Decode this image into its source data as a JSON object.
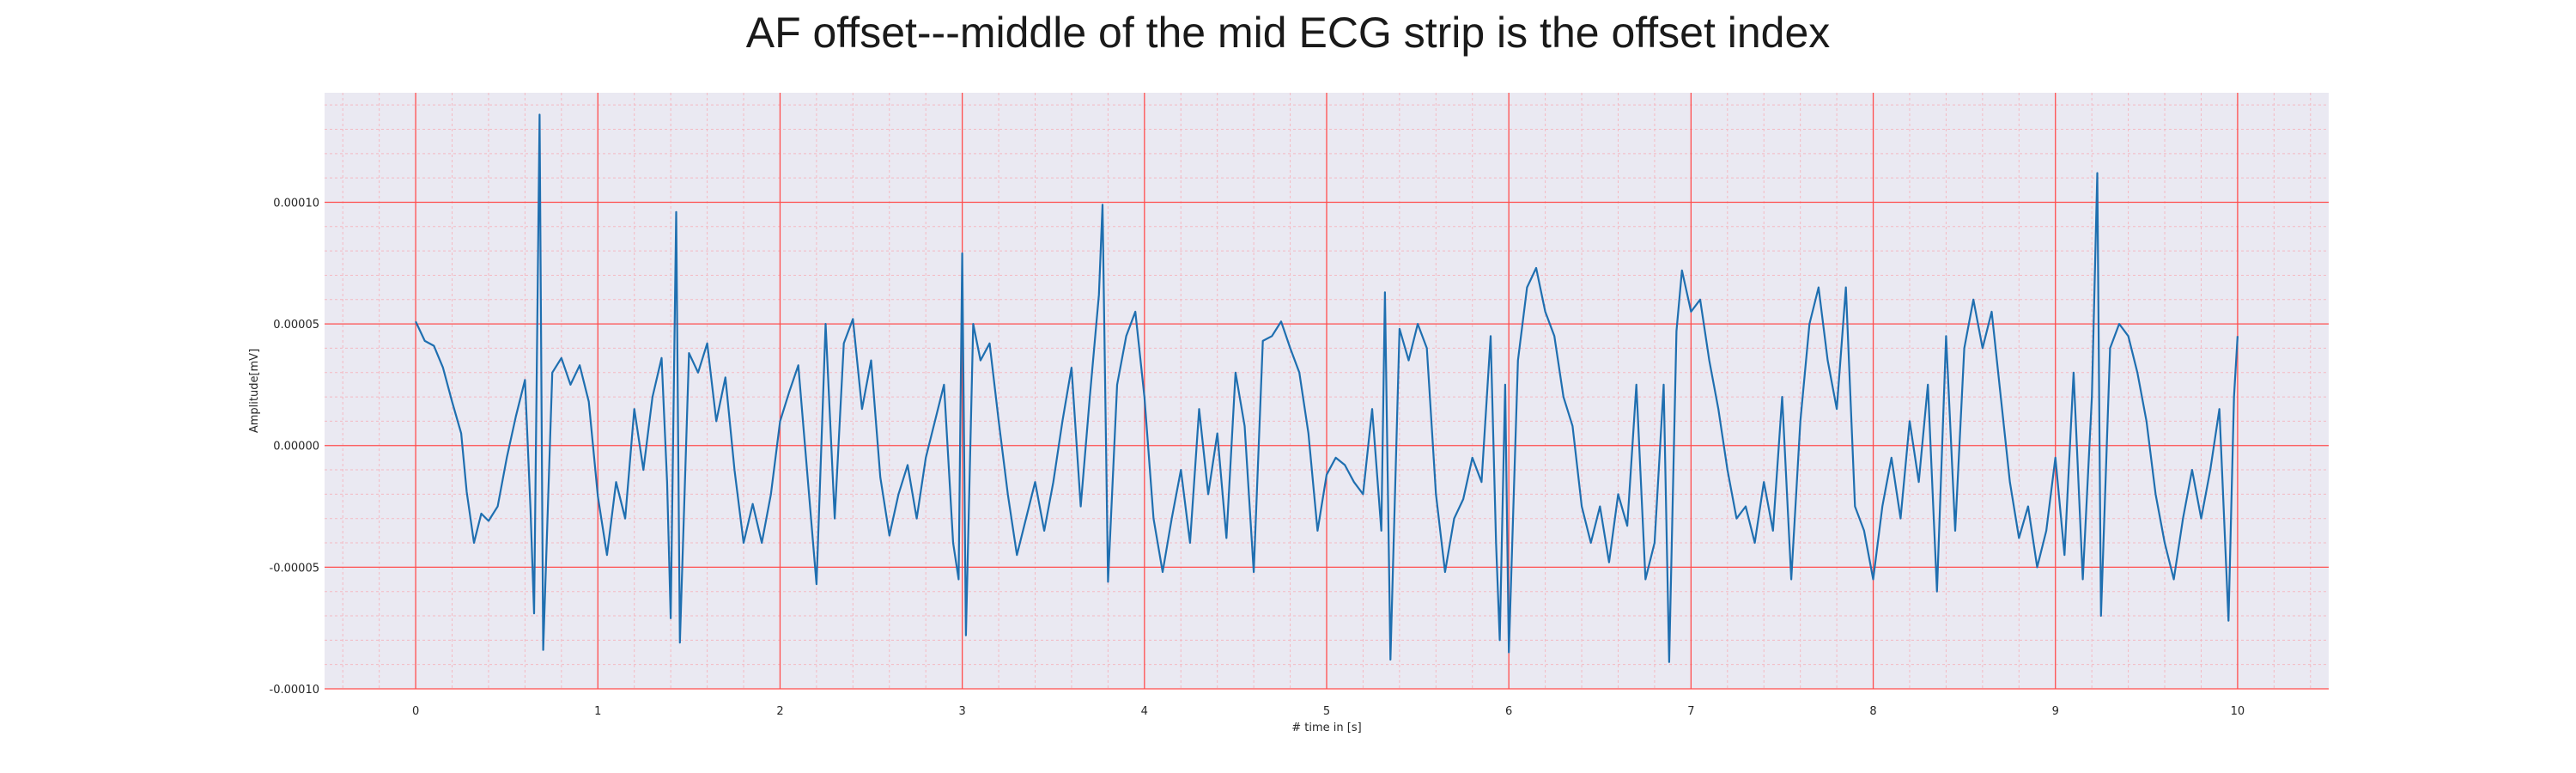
{
  "chart_data": {
    "type": "line",
    "title": "AF offset---middle of the mid ECG strip is the offset index",
    "xlabel": "# time in [s]",
    "ylabel": "Amplitude[mV]",
    "xlim": [
      -0.5,
      10.5
    ],
    "ylim": [
      -0.0001,
      0.000145
    ],
    "x_ticks": [
      0,
      1,
      2,
      3,
      4,
      5,
      6,
      7,
      8,
      9,
      10
    ],
    "x_tick_labels": [
      "0",
      "1",
      "2",
      "3",
      "4",
      "5",
      "6",
      "7",
      "8",
      "9",
      "10"
    ],
    "y_ticks": [
      -0.0001,
      -5e-05,
      0,
      5e-05,
      0.0001
    ],
    "y_tick_labels": [
      "-0.00010",
      "-0.00005",
      "0.00000",
      "0.00005",
      "0.00010"
    ],
    "grid": {
      "major": true,
      "minor": true,
      "major_color": "#ff4d4d",
      "minor_color": "#f4b9c2"
    },
    "background": "#eae9f2",
    "line_color": "#1f6fb0",
    "series": [
      {
        "values": [
          [
            0.0,
            5.1e-05
          ],
          [
            0.05,
            4.3e-05
          ],
          [
            0.1,
            4.1e-05
          ],
          [
            0.15,
            3.2e-05
          ],
          [
            0.2,
            1.8e-05
          ],
          [
            0.25,
            5e-06
          ],
          [
            0.28,
            -1.9e-05
          ],
          [
            0.32,
            -4e-05
          ],
          [
            0.36,
            -2.8e-05
          ],
          [
            0.4,
            -3.1e-05
          ],
          [
            0.45,
            -2.5e-05
          ],
          [
            0.5,
            -5e-06
          ],
          [
            0.55,
            1.2e-05
          ],
          [
            0.6,
            2.7e-05
          ],
          [
            0.63,
            -2.6e-05
          ],
          [
            0.65,
            -6.9e-05
          ],
          [
            0.68,
            0.000136
          ],
          [
            0.7,
            -8.4e-05
          ],
          [
            0.75,
            3e-05
          ],
          [
            0.8,
            3.6e-05
          ],
          [
            0.85,
            2.5e-05
          ],
          [
            0.9,
            3.3e-05
          ],
          [
            0.95,
            1.8e-05
          ],
          [
            1.0,
            -2.1e-05
          ],
          [
            1.05,
            -4.5e-05
          ],
          [
            1.1,
            -1.5e-05
          ],
          [
            1.15,
            -3e-05
          ],
          [
            1.2,
            1.5e-05
          ],
          [
            1.25,
            -1e-05
          ],
          [
            1.3,
            2e-05
          ],
          [
            1.35,
            3.6e-05
          ],
          [
            1.38,
            -1.5e-05
          ],
          [
            1.4,
            -7.1e-05
          ],
          [
            1.43,
            9.6e-05
          ],
          [
            1.45,
            -8.1e-05
          ],
          [
            1.5,
            3.8e-05
          ],
          [
            1.55,
            3e-05
          ],
          [
            1.6,
            4.2e-05
          ],
          [
            1.65,
            1e-05
          ],
          [
            1.7,
            2.8e-05
          ],
          [
            1.75,
            -1e-05
          ],
          [
            1.8,
            -4e-05
          ],
          [
            1.85,
            -2.4e-05
          ],
          [
            1.9,
            -4e-05
          ],
          [
            1.95,
            -2e-05
          ],
          [
            2.0,
            1e-05
          ],
          [
            2.05,
            2.2e-05
          ],
          [
            2.1,
            3.3e-05
          ],
          [
            2.15,
            -1.2e-05
          ],
          [
            2.2,
            -5.7e-05
          ],
          [
            2.25,
            5e-05
          ],
          [
            2.3,
            -3e-05
          ],
          [
            2.35,
            4.2e-05
          ],
          [
            2.4,
            5.2e-05
          ],
          [
            2.45,
            1.5e-05
          ],
          [
            2.5,
            3.5e-05
          ],
          [
            2.55,
            -1.3e-05
          ],
          [
            2.6,
            -3.7e-05
          ],
          [
            2.65,
            -2e-05
          ],
          [
            2.7,
            -8e-06
          ],
          [
            2.75,
            -3e-05
          ],
          [
            2.8,
            -5e-06
          ],
          [
            2.85,
            1e-05
          ],
          [
            2.9,
            2.5e-05
          ],
          [
            2.95,
            -4e-05
          ],
          [
            2.98,
            -5.5e-05
          ],
          [
            3.0,
            7.9e-05
          ],
          [
            3.02,
            -7.8e-05
          ],
          [
            3.06,
            5e-05
          ],
          [
            3.1,
            3.5e-05
          ],
          [
            3.15,
            4.2e-05
          ],
          [
            3.2,
            1e-05
          ],
          [
            3.25,
            -2e-05
          ],
          [
            3.3,
            -4.5e-05
          ],
          [
            3.35,
            -3e-05
          ],
          [
            3.4,
            -1.5e-05
          ],
          [
            3.45,
            -3.5e-05
          ],
          [
            3.5,
            -1.5e-05
          ],
          [
            3.55,
            1e-05
          ],
          [
            3.6,
            3.2e-05
          ],
          [
            3.65,
            -2.5e-05
          ],
          [
            3.7,
            2e-05
          ],
          [
            3.75,
            6.2e-05
          ],
          [
            3.77,
            9.9e-05
          ],
          [
            3.8,
            -5.6e-05
          ],
          [
            3.85,
            2.5e-05
          ],
          [
            3.9,
            4.5e-05
          ],
          [
            3.95,
            5.5e-05
          ],
          [
            4.0,
            2e-05
          ],
          [
            4.05,
            -3e-05
          ],
          [
            4.1,
            -5.2e-05
          ],
          [
            4.15,
            -3e-05
          ],
          [
            4.2,
            -1e-05
          ],
          [
            4.25,
            -4e-05
          ],
          [
            4.3,
            1.5e-05
          ],
          [
            4.35,
            -2e-05
          ],
          [
            4.4,
            5e-06
          ],
          [
            4.45,
            -3.8e-05
          ],
          [
            4.5,
            3e-05
          ],
          [
            4.55,
            8e-06
          ],
          [
            4.6,
            -5.2e-05
          ],
          [
            4.65,
            4.3e-05
          ],
          [
            4.7,
            4.5e-05
          ],
          [
            4.75,
            5.1e-05
          ],
          [
            4.8,
            4e-05
          ],
          [
            4.85,
            3e-05
          ],
          [
            4.9,
            5e-06
          ],
          [
            4.95,
            -3.5e-05
          ],
          [
            5.0,
            -1.2e-05
          ],
          [
            5.05,
            -5e-06
          ],
          [
            5.1,
            -8e-06
          ],
          [
            5.15,
            -1.5e-05
          ],
          [
            5.2,
            -2e-05
          ],
          [
            5.25,
            1.5e-05
          ],
          [
            5.3,
            -3.5e-05
          ],
          [
            5.32,
            6.3e-05
          ],
          [
            5.35,
            -8.8e-05
          ],
          [
            5.4,
            4.8e-05
          ],
          [
            5.45,
            3.5e-05
          ],
          [
            5.5,
            5e-05
          ],
          [
            5.55,
            4e-05
          ],
          [
            5.6,
            -2e-05
          ],
          [
            5.65,
            -5.2e-05
          ],
          [
            5.7,
            -3e-05
          ],
          [
            5.75,
            -2.2e-05
          ],
          [
            5.8,
            -5e-06
          ],
          [
            5.85,
            -1.5e-05
          ],
          [
            5.9,
            4.5e-05
          ],
          [
            5.93,
            -4e-05
          ],
          [
            5.95,
            -8e-05
          ],
          [
            5.98,
            2.5e-05
          ],
          [
            6.0,
            -8.5e-05
          ],
          [
            6.05,
            3.5e-05
          ],
          [
            6.1,
            6.5e-05
          ],
          [
            6.15,
            7.3e-05
          ],
          [
            6.2,
            5.5e-05
          ],
          [
            6.25,
            4.5e-05
          ],
          [
            6.3,
            2e-05
          ],
          [
            6.35,
            8e-06
          ],
          [
            6.4,
            -2.5e-05
          ],
          [
            6.45,
            -4e-05
          ],
          [
            6.5,
            -2.5e-05
          ],
          [
            6.55,
            -4.8e-05
          ],
          [
            6.6,
            -2e-05
          ],
          [
            6.65,
            -3.3e-05
          ],
          [
            6.7,
            2.5e-05
          ],
          [
            6.75,
            -5.5e-05
          ],
          [
            6.8,
            -4e-05
          ],
          [
            6.85,
            2.5e-05
          ],
          [
            6.88,
            -8.9e-05
          ],
          [
            6.92,
            4.7e-05
          ],
          [
            6.95,
            7.2e-05
          ],
          [
            7.0,
            5.5e-05
          ],
          [
            7.05,
            6e-05
          ],
          [
            7.1,
            3.5e-05
          ],
          [
            7.15,
            1.5e-05
          ],
          [
            7.2,
            -1e-05
          ],
          [
            7.25,
            -3e-05
          ],
          [
            7.3,
            -2.5e-05
          ],
          [
            7.35,
            -4e-05
          ],
          [
            7.4,
            -1.5e-05
          ],
          [
            7.45,
            -3.5e-05
          ],
          [
            7.5,
            2e-05
          ],
          [
            7.55,
            -5.5e-05
          ],
          [
            7.6,
            1e-05
          ],
          [
            7.65,
            5e-05
          ],
          [
            7.7,
            6.5e-05
          ],
          [
            7.75,
            3.5e-05
          ],
          [
            7.8,
            1.5e-05
          ],
          [
            7.85,
            6.5e-05
          ],
          [
            7.9,
            -2.5e-05
          ],
          [
            7.95,
            -3.5e-05
          ],
          [
            8.0,
            -5.5e-05
          ],
          [
            8.05,
            -2.5e-05
          ],
          [
            8.1,
            -5e-06
          ],
          [
            8.15,
            -3e-05
          ],
          [
            8.2,
            1e-05
          ],
          [
            8.25,
            -1.5e-05
          ],
          [
            8.3,
            2.5e-05
          ],
          [
            8.35,
            -6e-05
          ],
          [
            8.4,
            4.5e-05
          ],
          [
            8.45,
            -3.5e-05
          ],
          [
            8.5,
            4e-05
          ],
          [
            8.55,
            6e-05
          ],
          [
            8.6,
            4e-05
          ],
          [
            8.65,
            5.5e-05
          ],
          [
            8.7,
            2e-05
          ],
          [
            8.75,
            -1.5e-05
          ],
          [
            8.8,
            -3.8e-05
          ],
          [
            8.85,
            -2.5e-05
          ],
          [
            8.9,
            -5e-05
          ],
          [
            8.95,
            -3.5e-05
          ],
          [
            9.0,
            -5e-06
          ],
          [
            9.05,
            -4.5e-05
          ],
          [
            9.1,
            3e-05
          ],
          [
            9.15,
            -5.5e-05
          ],
          [
            9.2,
            2e-05
          ],
          [
            9.23,
            0.000112
          ],
          [
            9.25,
            -7e-05
          ],
          [
            9.3,
            4e-05
          ],
          [
            9.35,
            5e-05
          ],
          [
            9.4,
            4.5e-05
          ],
          [
            9.45,
            3e-05
          ],
          [
            9.5,
            1e-05
          ],
          [
            9.55,
            -2e-05
          ],
          [
            9.6,
            -4e-05
          ],
          [
            9.65,
            -5.5e-05
          ],
          [
            9.7,
            -3e-05
          ],
          [
            9.75,
            -1e-05
          ],
          [
            9.8,
            -3e-05
          ],
          [
            9.85,
            -1e-05
          ],
          [
            9.9,
            1.5e-05
          ],
          [
            9.95,
            -7.2e-05
          ],
          [
            9.98,
            2e-05
          ],
          [
            10.0,
            4.5e-05
          ]
        ]
      }
    ]
  }
}
